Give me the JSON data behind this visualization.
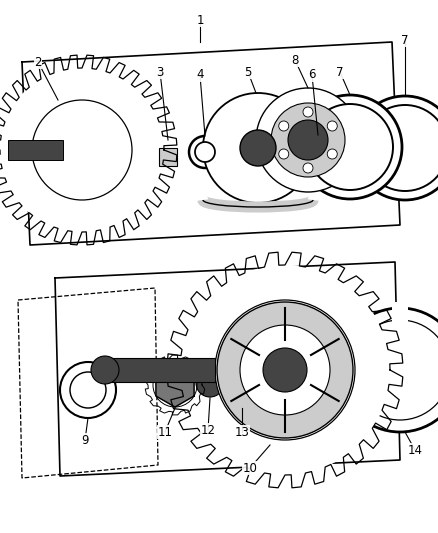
{
  "bg_color": "#ffffff",
  "lc": "#000000",
  "gc": "#999999",
  "lgc": "#cccccc",
  "dgc": "#444444",
  "mgc": "#777777"
}
